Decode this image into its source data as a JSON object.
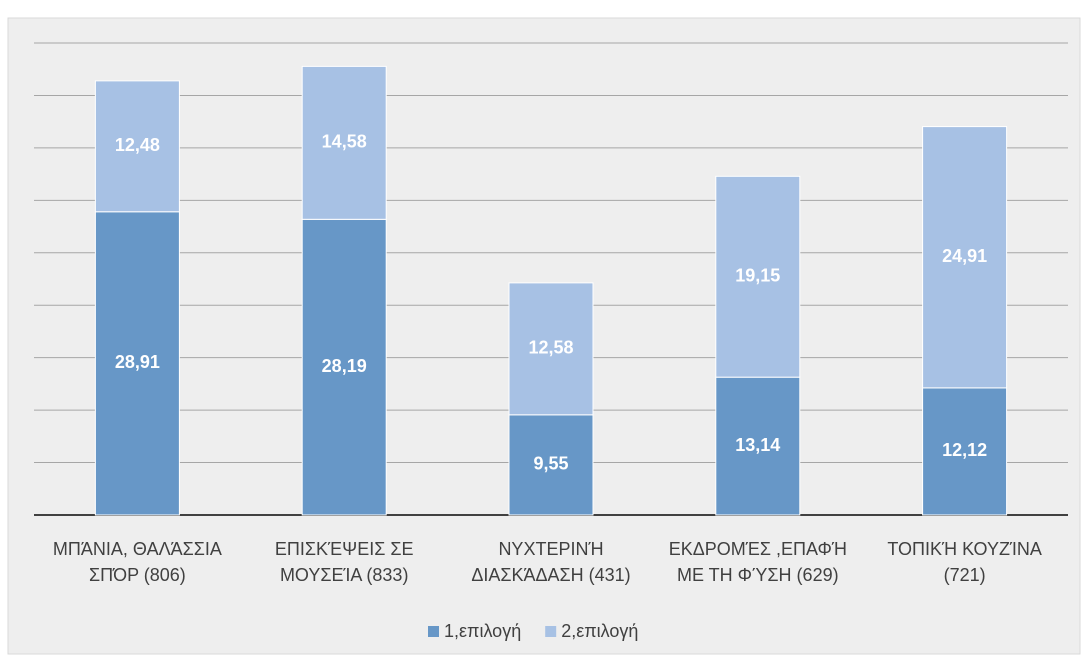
{
  "chart_data": {
    "type": "stacked_bar",
    "categories": [
      "ΜΠΆΝΙΑ, ΘΑΛΆΣΣΙΑ\nΣΠΌΡ (806)",
      "ΕΠΙΣΚΈΨΕΙΣ ΣΕ\nΜΟΥΣΕΊΑ (833)",
      "ΝΥΧΤΕΡΙΝΉ\nΔΙΑΣΚΆΔΑΣΗ (431)",
      "ΕΚΔΡΟΜΈΣ ,ΕΠΑΦΉ\nΜΕ ΤΗ ΦΎΣΗ  (629)",
      "ΤΟΠΙΚΉ ΚΟΥΖΊΝΑ\n(721)"
    ],
    "series": [
      {
        "name": "1,επιλογή",
        "color": "#6797c7",
        "values": [
          28.91,
          28.19,
          9.55,
          13.14,
          12.12
        ],
        "value_labels": [
          "28,91",
          "28,19",
          "9,55",
          "13,14",
          "12,12"
        ]
      },
      {
        "name": "2,επιλογή",
        "color": "#a7c1e4",
        "values": [
          12.48,
          14.58,
          12.58,
          19.15,
          24.91
        ],
        "value_labels": [
          "12,48",
          "14,58",
          "12,58",
          "19,15",
          "24,91"
        ]
      }
    ],
    "ylim": [
      0,
      45
    ],
    "yticks": [
      0,
      5,
      10,
      15,
      20,
      25,
      30,
      35,
      40,
      45
    ],
    "grid": true,
    "legend": "bottom"
  }
}
